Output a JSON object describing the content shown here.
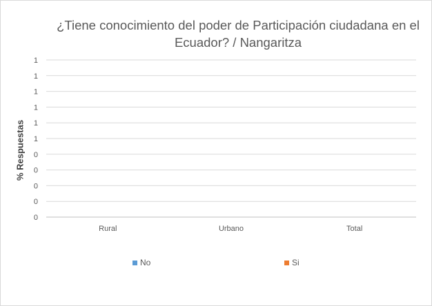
{
  "chart_data": {
    "type": "bar",
    "title": "¿Tiene conocimiento del poder de Participación ciudadana en el Ecuador?  / Nangaritza",
    "title_lines": [
      "¿Tiene conocimiento del poder de Participación ciudadana en el",
      "Ecuador?  / Nangaritza"
    ],
    "xlabel": "",
    "ylabel": "% Respuestas",
    "categories": [
      "Rural",
      "Urbano",
      "Total"
    ],
    "y_tick_labels": [
      "0",
      "0",
      "0",
      "0",
      "0",
      "1",
      "1",
      "1",
      "1",
      "1",
      "1"
    ],
    "ylim": [
      0,
      1
    ],
    "grid": true,
    "legend_position": "bottom",
    "series": [
      {
        "name": "No",
        "color": "#5b9bd5",
        "values": [
          0,
          0,
          0
        ]
      },
      {
        "name": "Si",
        "color": "#ed7d31",
        "values": [
          0,
          0,
          0
        ]
      }
    ]
  }
}
